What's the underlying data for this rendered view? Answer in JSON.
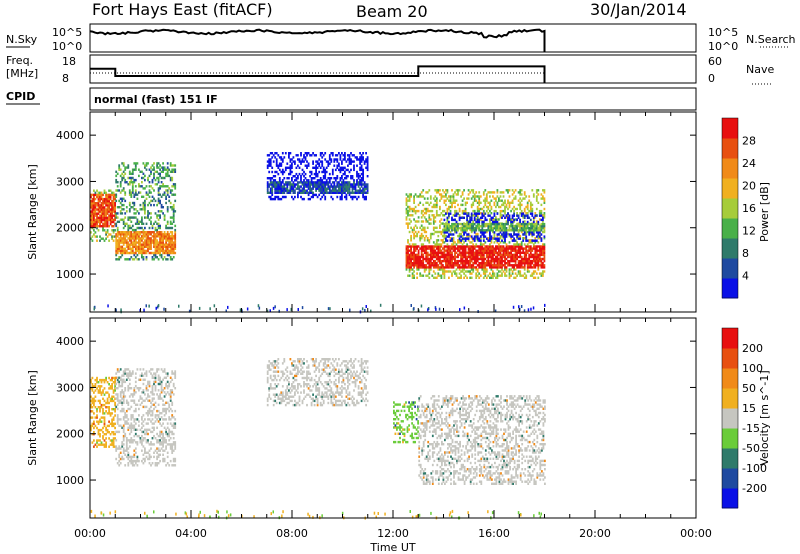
{
  "header": {
    "radar": "Fort Hays East (fitACF)",
    "beam": "Beam 20",
    "date": "30/Jan/2014"
  },
  "mini_panels": {
    "nsky_label": "N.Sky",
    "nsky_ticks": [
      "10^5",
      "10^0"
    ],
    "nsearch_label": "N.Search",
    "nsearch_ticks": [
      "10^5",
      "10^0"
    ],
    "freq_label_1": "Freq.",
    "freq_label_2": "[MHz]",
    "freq_ticks": [
      "18",
      "8"
    ],
    "nave_label": "Nave",
    "nave_ticks": [
      "60",
      "0"
    ],
    "cpid_label": "CPID",
    "cpid_text": "normal (fast) 151 IF"
  },
  "colors": {
    "power_scale": [
      "#0a10e6",
      "#1f4aa0",
      "#2f7a6a",
      "#49b049",
      "#a6cc3a",
      "#f0b020",
      "#f08a18",
      "#e85010",
      "#e81010"
    ],
    "velocity_scale": [
      "#e81010",
      "#e85010",
      "#f08a18",
      "#f0b020",
      "#c6c6c0",
      "#6acc3a",
      "#2f7a6a",
      "#1f4aa0",
      "#0a10e6"
    ]
  },
  "chart_data": [
    {
      "type": "heatmap",
      "name": "power_panel",
      "ylabel": "Slant Range [km]",
      "xlabel": "Time UT",
      "x_ticks": [
        "00:00",
        "04:00",
        "08:00",
        "12:00",
        "16:00",
        "20:00",
        "00:00"
      ],
      "xlim_hours": [
        0,
        24
      ],
      "y_ticks": [
        "1000",
        "2000",
        "3000",
        "4000"
      ],
      "ylim_km": [
        180,
        4500
      ],
      "colorbar": {
        "label": "Power [dB]",
        "ticks": [
          "28",
          "24",
          "20",
          "16",
          "12",
          "8",
          "4"
        ],
        "range": [
          0,
          32
        ]
      },
      "echo_regions": [
        {
          "t_start": 0.0,
          "t_end": 1.0,
          "range_low": 1700,
          "range_high": 2800,
          "core_low": 2000,
          "core_high": 2700,
          "color_index": 7
        },
        {
          "t_start": 1.0,
          "t_end": 3.4,
          "range_low": 1300,
          "range_high": 3400,
          "core_low": 1400,
          "core_high": 1900,
          "color_index": 6
        },
        {
          "t_start": 7.0,
          "t_end": 11.0,
          "range_low": 2600,
          "range_high": 3600,
          "core_low": 2700,
          "core_high": 3000,
          "color_index": 1
        },
        {
          "t_start": 12.5,
          "t_end": 18.0,
          "range_low": 900,
          "range_high": 2800,
          "core_low": 1100,
          "core_high": 1600,
          "color_index": 8
        },
        {
          "t_start": 14.0,
          "t_end": 18.0,
          "range_low": 1700,
          "range_high": 2300,
          "core_low": 1900,
          "core_high": 2100,
          "color_index": 3
        }
      ]
    },
    {
      "type": "heatmap",
      "name": "velocity_panel",
      "ylabel": "Slant Range [km]",
      "xlabel": "Time UT",
      "x_ticks": [
        "00:00",
        "04:00",
        "08:00",
        "12:00",
        "16:00",
        "20:00",
        "00:00"
      ],
      "xlim_hours": [
        0,
        24
      ],
      "y_ticks": [
        "1000",
        "2000",
        "3000",
        "4000"
      ],
      "ylim_km": [
        180,
        4500
      ],
      "colorbar": {
        "label": "Velocity [m s^-1]",
        "ticks": [
          "200",
          "100",
          "50",
          "15",
          "-15",
          "-50",
          "-100",
          "-200"
        ],
        "range": [
          -250,
          250
        ]
      },
      "echo_regions": [
        {
          "t_start": 0.0,
          "t_end": 1.0,
          "range_low": 1700,
          "range_high": 3200,
          "color_index": 3
        },
        {
          "t_start": 1.0,
          "t_end": 3.4,
          "range_low": 1300,
          "range_high": 3400,
          "color_index": 4
        },
        {
          "t_start": 7.0,
          "t_end": 11.0,
          "range_low": 2600,
          "range_high": 3600,
          "color_index": 4
        },
        {
          "t_start": 12.0,
          "t_end": 13.0,
          "range_low": 1800,
          "range_high": 2700,
          "color_index": 5
        },
        {
          "t_start": 13.0,
          "t_end": 18.0,
          "range_low": 900,
          "range_high": 2800,
          "color_index": 4
        }
      ]
    }
  ],
  "series_panels": {
    "frequency_mhz": [
      {
        "t": 0,
        "v": 13.5
      },
      {
        "t": 1.0,
        "v": 13.5
      },
      {
        "t": 1.0,
        "v": 10.5
      },
      {
        "t": 13.0,
        "v": 10.5
      },
      {
        "t": 13.0,
        "v": 14.5
      },
      {
        "t": 18.0,
        "v": 14.5
      }
    ]
  }
}
